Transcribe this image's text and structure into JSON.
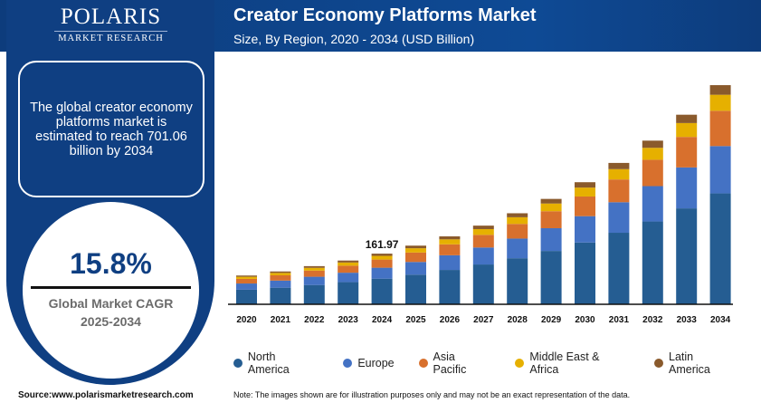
{
  "brand": {
    "name": "POLARIS",
    "tagline": "MARKET RESEARCH"
  },
  "info_text": "The global creator economy platforms market is estimated to reach 701.06 billion by 2034",
  "cagr": {
    "value": "15.8%",
    "label": "Global Market CAGR",
    "period": "2025-2034"
  },
  "source": "Source:www.polarismarketresearch.com",
  "note": "Note: The images shown are for illustration purposes only and may not be an exact representation of the data.",
  "colors": {
    "navy": "#0f3f82",
    "North America": "#255d92",
    "Europe": "#4472c4",
    "Asia Pacific": "#d8702d",
    "Middle East & Africa": "#e6b000",
    "Latin America": "#8a5a2c"
  },
  "chart_data": {
    "type": "bar",
    "stacked": true,
    "title": "Creator Economy Platforms Market",
    "subtitle": "Size, By Region, 2020 - 2034 (USD Billion)",
    "categories": [
      "2020",
      "2021",
      "2022",
      "2023",
      "2024",
      "2025",
      "2026",
      "2027",
      "2028",
      "2029",
      "2030",
      "2031",
      "2032",
      "2033",
      "2034"
    ],
    "series": [
      {
        "name": "North America",
        "values": [
          46.6,
          53.1,
          61.7,
          70.8,
          82.0,
          94.9,
          109.9,
          127.3,
          147.3,
          170.6,
          197.6,
          228.8,
          264.9,
          306.8,
          354.7
        ]
      },
      {
        "name": "Europe",
        "values": [
          19.9,
          22.7,
          26.4,
          30.2,
          35.0,
          40.5,
          46.9,
          54.3,
          62.9,
          72.8,
          84.3,
          97.7,
          113.1,
          131.0,
          151.4
        ]
      },
      {
        "name": "Asia Pacific",
        "values": [
          14.8,
          16.9,
          19.6,
          22.5,
          26.1,
          30.2,
          35.0,
          40.5,
          46.9,
          54.3,
          62.9,
          72.8,
          84.3,
          97.6,
          112.9
        ]
      },
      {
        "name": "Middle East & Africa",
        "values": [
          6.7,
          7.7,
          8.9,
          10.2,
          11.8,
          13.7,
          15.9,
          18.4,
          21.3,
          24.6,
          28.5,
          33.0,
          38.2,
          44.3,
          51.2
        ]
      },
      {
        "name": "Latin America",
        "values": [
          4.0,
          4.6,
          5.4,
          6.2,
          7.1,
          8.3,
          9.6,
          11.1,
          12.8,
          14.8,
          17.2,
          19.9,
          23.0,
          26.7,
          30.8
        ]
      }
    ],
    "annotations": [
      {
        "category": "2024",
        "text": "161.97"
      }
    ],
    "ylim": [
      0,
      701.06
    ],
    "grid": false,
    "legend": "bottom"
  }
}
